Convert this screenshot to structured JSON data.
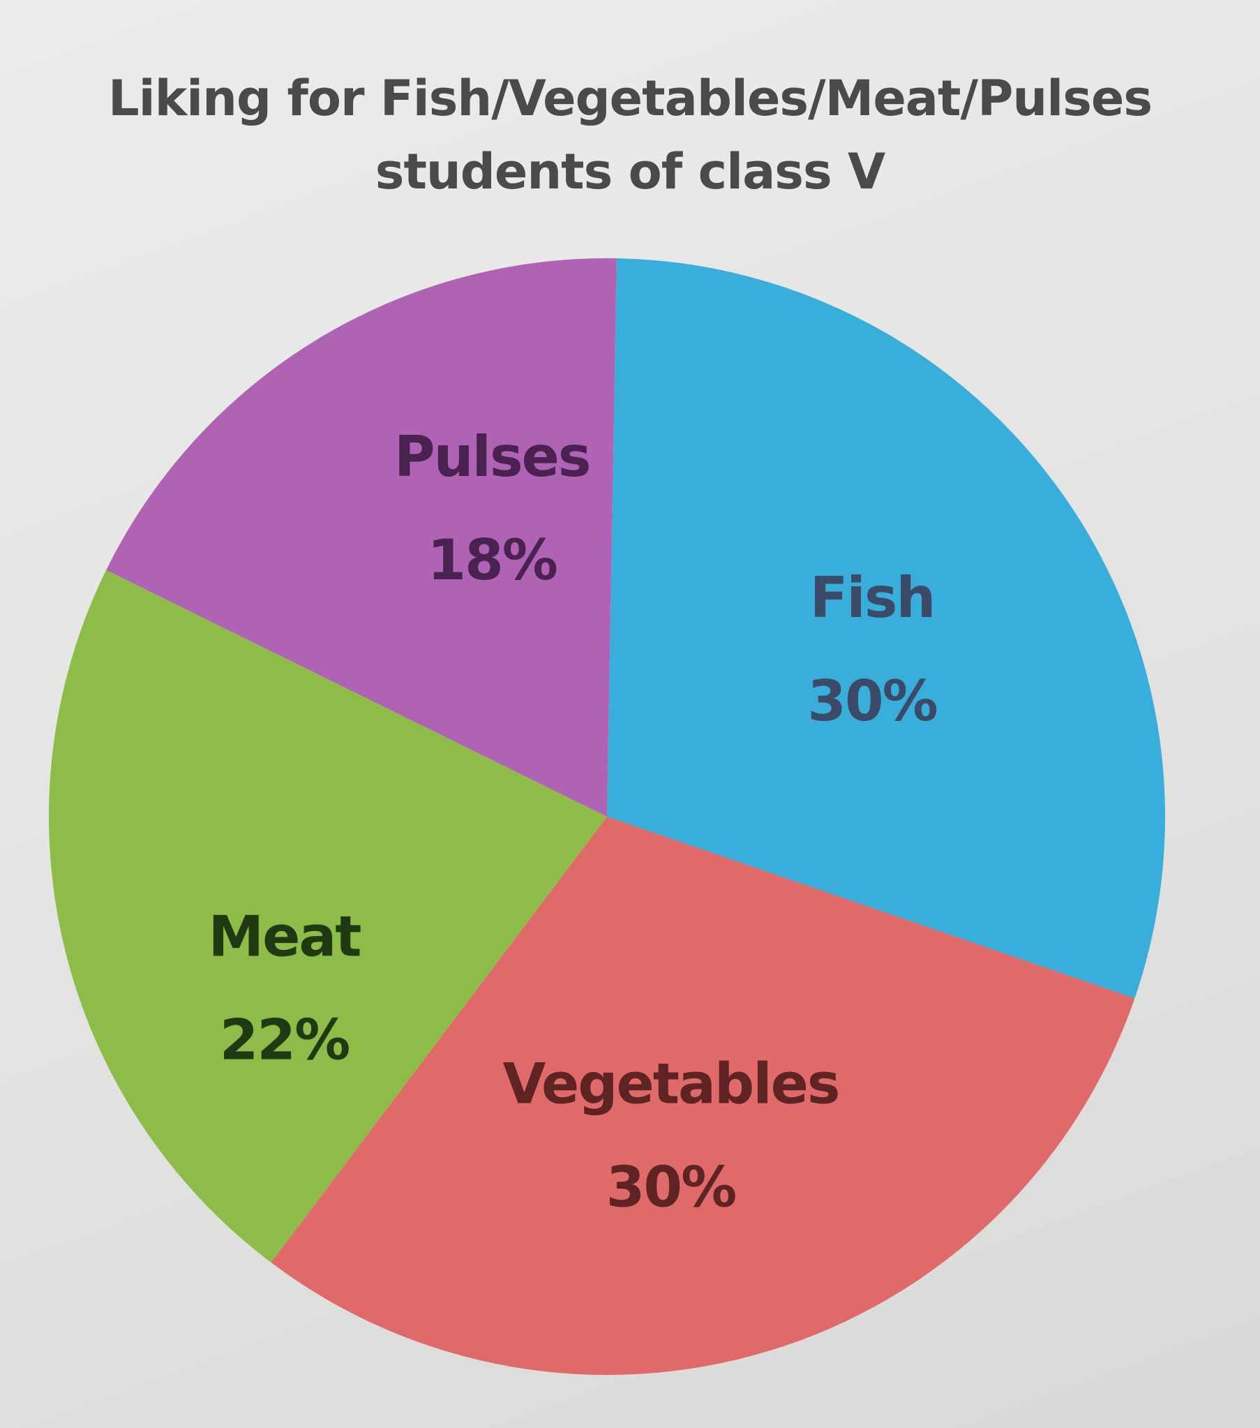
{
  "chart_data": {
    "type": "pie",
    "title": "Liking for Fish/Vegetables/Meat/Pulses",
    "subtitle": "students of class V",
    "slices": [
      {
        "name": "Fish",
        "value": 30,
        "label": "30%",
        "color": "#3aaedb",
        "text_color": "#3b4a66"
      },
      {
        "name": "Vegetables",
        "value": 30,
        "label": "30%",
        "color": "#e06a6a",
        "text_color": "#5e2424"
      },
      {
        "name": "Meat",
        "value": 22,
        "label": "22%",
        "color": "#8dbd48",
        "text_color": "#1f3a12"
      },
      {
        "name": "Pulses",
        "value": 18,
        "label": "18%",
        "color": "#b063b5",
        "text_color": "#4a2250"
      }
    ]
  }
}
